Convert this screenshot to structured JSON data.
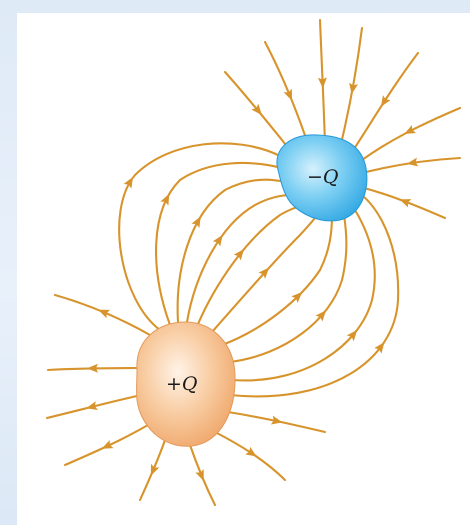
{
  "diagram": {
    "negative_charge": {
      "label": "−Q",
      "color": "#3fb8ec"
    },
    "positive_charge": {
      "label": "+Q",
      "color": "#f3b27c"
    },
    "field_line_color": "#d8942c",
    "arrow_icon": "arrowhead-icon"
  }
}
